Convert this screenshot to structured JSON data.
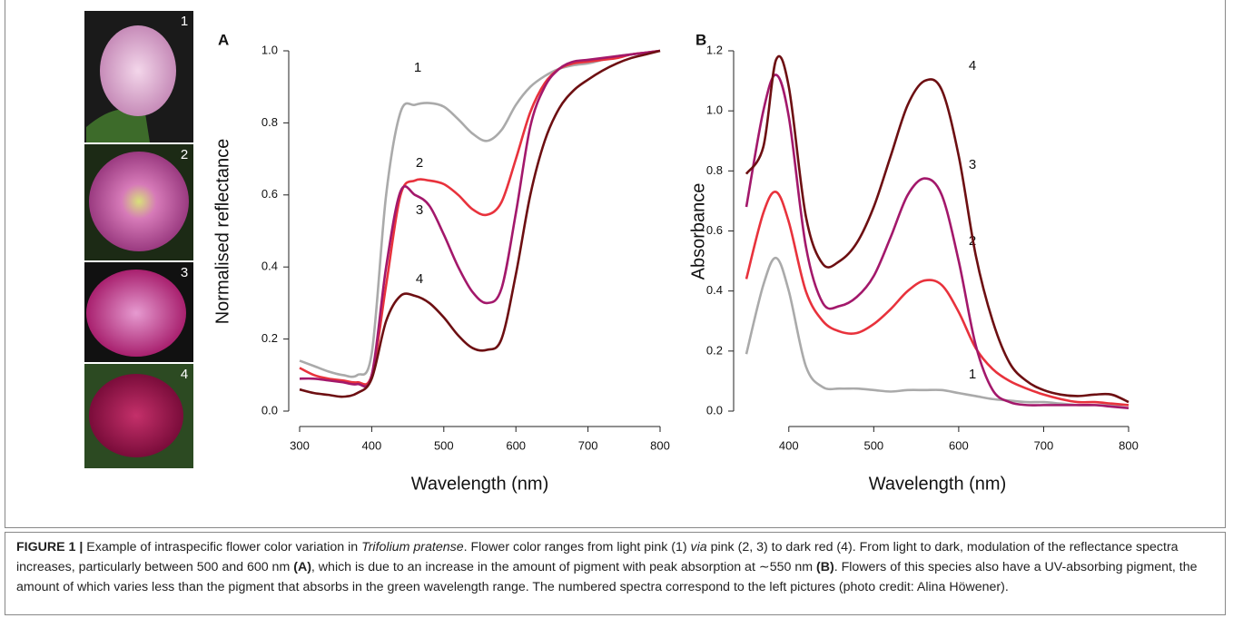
{
  "figure": {
    "photo_labels": [
      "1",
      "2",
      "3",
      "4"
    ]
  },
  "chart_data": [
    {
      "type": "line",
      "label": "A",
      "x_label": "Wavelength (nm)",
      "y_label": "Normalised reflectance",
      "x": [
        300,
        320,
        340,
        360,
        380,
        400,
        420,
        440,
        460,
        480,
        500,
        520,
        540,
        560,
        580,
        600,
        620,
        640,
        660,
        680,
        700,
        720,
        740,
        760,
        780,
        800
      ],
      "xlim": [
        300,
        800
      ],
      "xticks": [
        300,
        400,
        500,
        600,
        700,
        800
      ],
      "ylim": [
        0,
        1
      ],
      "yticks": [
        {
          "value": 0,
          "label": "0.0"
        },
        0.2,
        0.4,
        0.6,
        0.8,
        {
          "value": 1,
          "label": "1.0"
        }
      ],
      "series": [
        {
          "name": "1",
          "color": "#aaaaaa",
          "values": [
            0.14,
            0.125,
            0.11,
            0.1,
            0.1,
            0.16,
            0.6,
            0.83,
            0.85,
            0.855,
            0.845,
            0.81,
            0.77,
            0.75,
            0.78,
            0.85,
            0.9,
            0.93,
            0.95,
            0.96,
            0.965,
            0.975,
            0.985,
            0.99,
            0.995,
            1.0
          ]
        },
        {
          "name": "2",
          "color": "#e8323c",
          "values": [
            0.12,
            0.1,
            0.09,
            0.085,
            0.08,
            0.1,
            0.35,
            0.6,
            0.64,
            0.64,
            0.63,
            0.6,
            0.56,
            0.545,
            0.58,
            0.7,
            0.83,
            0.91,
            0.95,
            0.965,
            0.97,
            0.975,
            0.98,
            0.99,
            0.995,
            1.0
          ]
        },
        {
          "name": "3",
          "color": "#a3186b",
          "values": [
            0.09,
            0.09,
            0.085,
            0.08,
            0.075,
            0.1,
            0.4,
            0.61,
            0.6,
            0.57,
            0.49,
            0.4,
            0.33,
            0.3,
            0.34,
            0.55,
            0.79,
            0.9,
            0.95,
            0.97,
            0.975,
            0.98,
            0.985,
            0.99,
            0.995,
            1.0
          ]
        },
        {
          "name": "4",
          "color": "#6d0f12",
          "values": [
            0.06,
            0.05,
            0.045,
            0.04,
            0.05,
            0.09,
            0.25,
            0.32,
            0.32,
            0.3,
            0.26,
            0.21,
            0.175,
            0.17,
            0.2,
            0.38,
            0.6,
            0.75,
            0.84,
            0.89,
            0.92,
            0.945,
            0.965,
            0.98,
            0.99,
            1.0
          ]
        }
      ]
    },
    {
      "type": "line",
      "label": "B",
      "x_label": "Wavelength (nm)",
      "y_label": "Absorbance",
      "x": [
        350,
        370,
        385,
        400,
        420,
        440,
        460,
        480,
        500,
        520,
        540,
        560,
        580,
        600,
        620,
        640,
        660,
        680,
        700,
        720,
        740,
        760,
        780,
        800
      ],
      "xlim": [
        350,
        800
      ],
      "xticks": [
        400,
        500,
        600,
        700,
        800
      ],
      "ylim": [
        0,
        1.2
      ],
      "yticks": [
        {
          "value": 0,
          "label": "0.0"
        },
        0.2,
        0.4,
        0.6,
        0.8,
        {
          "value": 1,
          "label": "1.0"
        },
        1.2
      ],
      "series": [
        {
          "name": "1",
          "color": "#aaaaaa",
          "values": [
            0.19,
            0.42,
            0.51,
            0.4,
            0.15,
            0.08,
            0.075,
            0.075,
            0.07,
            0.065,
            0.07,
            0.07,
            0.07,
            0.06,
            0.05,
            0.04,
            0.035,
            0.03,
            0.03,
            0.025,
            0.02,
            0.02,
            0.02,
            0.02
          ]
        },
        {
          "name": "2",
          "color": "#e8323c",
          "values": [
            0.44,
            0.66,
            0.73,
            0.63,
            0.4,
            0.3,
            0.265,
            0.26,
            0.29,
            0.34,
            0.4,
            0.435,
            0.42,
            0.33,
            0.21,
            0.14,
            0.1,
            0.075,
            0.055,
            0.04,
            0.03,
            0.03,
            0.025,
            0.02
          ]
        },
        {
          "name": "3",
          "color": "#a3186b",
          "values": [
            0.68,
            1.0,
            1.12,
            0.98,
            0.55,
            0.36,
            0.35,
            0.38,
            0.45,
            0.58,
            0.72,
            0.775,
            0.72,
            0.5,
            0.22,
            0.07,
            0.03,
            0.02,
            0.02,
            0.02,
            0.02,
            0.02,
            0.015,
            0.01
          ]
        },
        {
          "name": "4",
          "color": "#6d0f12",
          "values": [
            0.79,
            0.88,
            1.17,
            1.08,
            0.65,
            0.49,
            0.5,
            0.56,
            0.68,
            0.85,
            1.02,
            1.1,
            1.07,
            0.85,
            0.52,
            0.3,
            0.16,
            0.1,
            0.07,
            0.055,
            0.05,
            0.055,
            0.055,
            0.03
          ]
        }
      ]
    }
  ],
  "caption": {
    "label": "FIGURE 1 |",
    "parts": [
      " Example of intraspecific flower color variation in ",
      "Trifolium pratense",
      ". Flower color ranges from light pink (1) ",
      "via",
      " pink (2, 3) to dark red (4). From light to dark, modulation of the reflectance spectra increases, particularly between 500 and 600 nm ",
      "(A)",
      ", which is due to an increase in the amount of pigment with peak absorption at ∼550 nm ",
      "(B)",
      ". Flowers of this species also have a UV-absorbing pigment, the amount of which varies less than the pigment that absorbs in the green wavelength range. The numbered spectra correspond to the left pictures (photo credit: Alina Höwener)."
    ]
  }
}
